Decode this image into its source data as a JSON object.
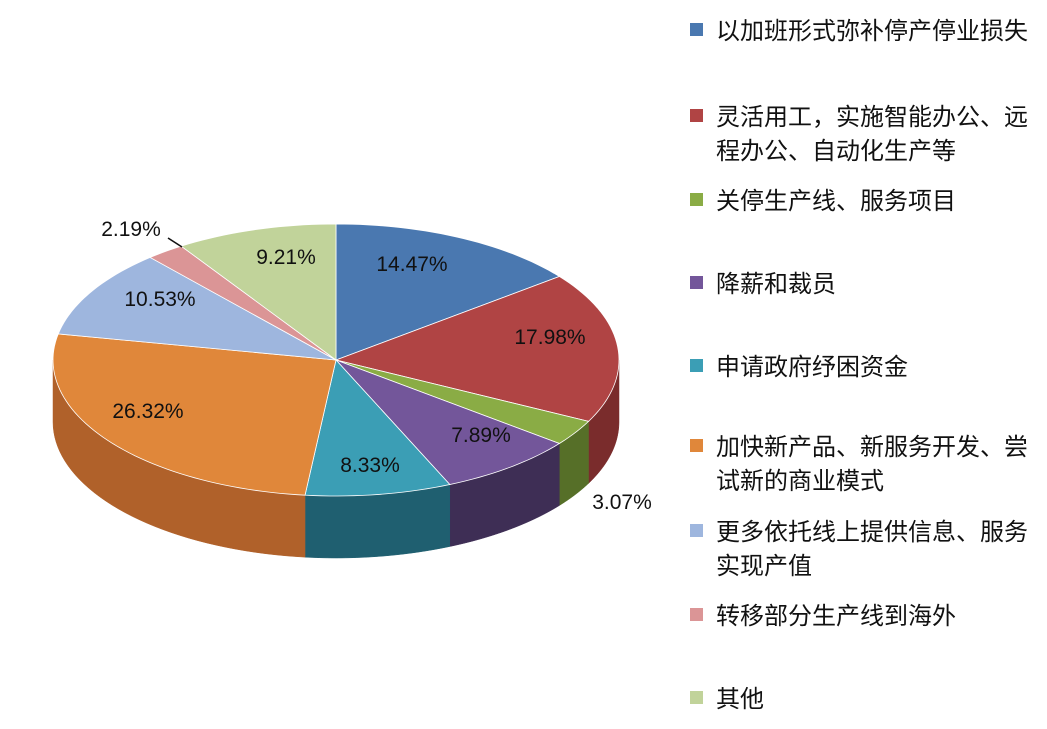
{
  "chart_data": {
    "type": "pie",
    "three_d": true,
    "start_angle_deg": 0,
    "direction": "clockwise",
    "legend_position": "right",
    "slices": [
      {
        "label": "以加班形式弥补停产停业损失",
        "value": 14.47,
        "value_label": "14.47%",
        "color": "#4a78b0",
        "side_color": "#2f4f78"
      },
      {
        "label": "灵活用工，实施智能办公、远程办公、自动化生产等",
        "value": 17.98,
        "value_label": "17.98%",
        "color": "#b04444",
        "side_color": "#7a2c2c"
      },
      {
        "label": "关停生产线、服务项目",
        "value": 3.07,
        "value_label": "3.07%",
        "color": "#8aac45",
        "side_color": "#566f28"
      },
      {
        "label": "降薪和裁员",
        "value": 7.89,
        "value_label": "7.89%",
        "color": "#73569a",
        "side_color": "#3e2e55"
      },
      {
        "label": "申请政府纾困资金",
        "value": 8.33,
        "value_label": "8.33%",
        "color": "#3b9eb5",
        "side_color": "#1f5f70"
      },
      {
        "label": "加快新产品、新服务开发、尝试新的商业模式",
        "value": 26.32,
        "value_label": "26.32%",
        "color": "#e0873a",
        "side_color": "#b0612a"
      },
      {
        "label": "更多依托线上提供信息、服务实现产值",
        "value": 10.53,
        "value_label": "10.53%",
        "color": "#9eb6de",
        "side_color": "#6d86b0"
      },
      {
        "label": "转移部分生产线到海外",
        "value": 2.19,
        "value_label": "2.19%",
        "color": "#db9596",
        "side_color": "#a56465"
      },
      {
        "label": "其他",
        "value": 9.21,
        "value_label": "9.21%",
        "color": "#c1d39a",
        "side_color": "#8fa36a"
      }
    ]
  }
}
